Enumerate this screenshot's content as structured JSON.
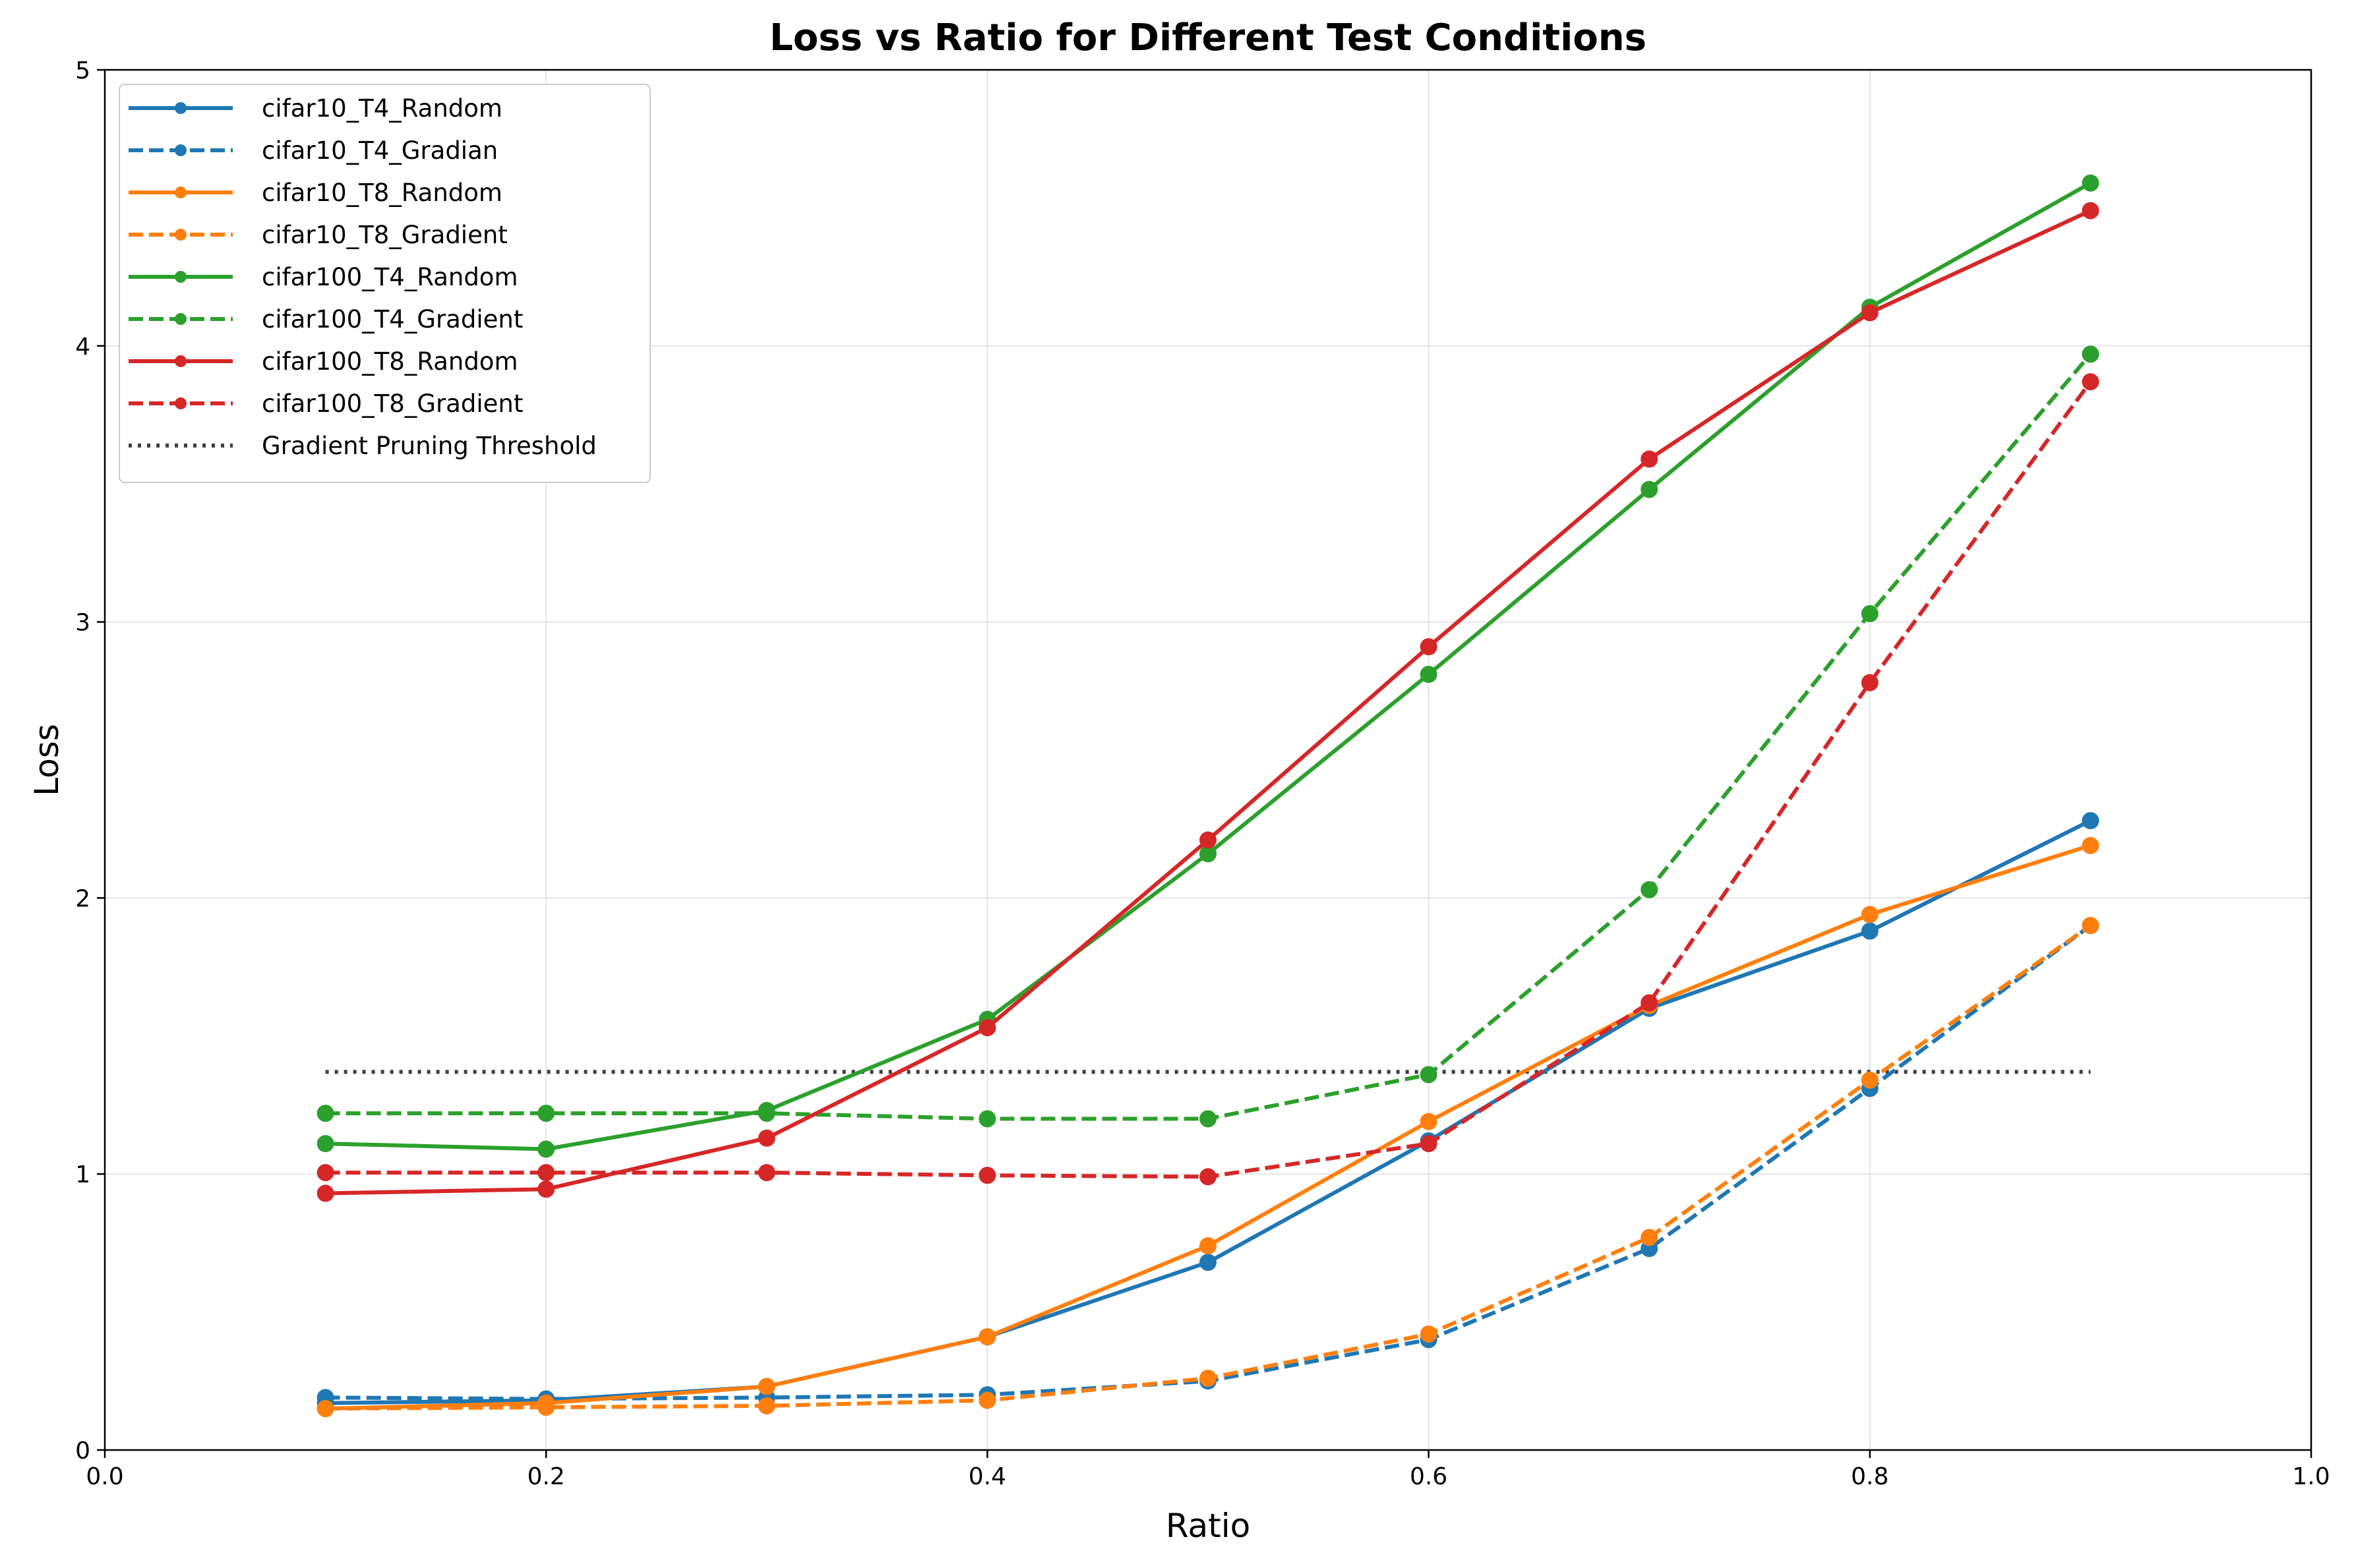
{
  "chart_data": {
    "type": "line",
    "title": "Loss vs Ratio for Different Test Conditions",
    "xlabel": "Ratio",
    "ylabel": "Loss",
    "xlim": [
      0.0,
      1.0
    ],
    "ylim": [
      0,
      5
    ],
    "xticks": [
      "0.0",
      "0.2",
      "0.4",
      "0.6",
      "0.8",
      "1.0"
    ],
    "yticks": [
      "0",
      "1",
      "2",
      "3",
      "4",
      "5"
    ],
    "grid": true,
    "legend_position": "top-left",
    "x": [
      0.1,
      0.2,
      0.3,
      0.4,
      0.5,
      0.6,
      0.7,
      0.8,
      0.9
    ],
    "series": [
      {
        "name": "cifar10_T4_Random",
        "color": "#1f77b4",
        "style": "solid",
        "values": [
          0.17,
          0.18,
          0.23,
          0.41,
          0.68,
          1.12,
          1.6,
          1.88,
          2.28
        ]
      },
      {
        "name": "cifar10_T4_Gradian",
        "color": "#1f77b4",
        "style": "dashed",
        "values": [
          0.19,
          0.185,
          0.19,
          0.2,
          0.25,
          0.4,
          0.73,
          1.31,
          1.9
        ]
      },
      {
        "name": "cifar10_T8_Random",
        "color": "#ff7f0e",
        "style": "solid",
        "values": [
          0.15,
          0.17,
          0.23,
          0.41,
          0.74,
          1.19,
          1.61,
          1.94,
          2.19
        ]
      },
      {
        "name": "cifar10_T8_Gradient",
        "color": "#ff7f0e",
        "style": "dashed",
        "values": [
          0.15,
          0.155,
          0.16,
          0.18,
          0.26,
          0.42,
          0.77,
          1.34,
          1.9
        ]
      },
      {
        "name": "cifar100_T4_Random",
        "color": "#2ca02c",
        "style": "solid",
        "values": [
          1.11,
          1.09,
          1.23,
          1.56,
          2.16,
          2.81,
          3.48,
          4.14,
          4.59
        ]
      },
      {
        "name": "cifar100_T4_Gradient",
        "color": "#2ca02c",
        "style": "dashed",
        "values": [
          1.22,
          1.22,
          1.22,
          1.2,
          1.2,
          1.36,
          2.03,
          3.03,
          3.97
        ]
      },
      {
        "name": "cifar100_T8_Random",
        "color": "#d62728",
        "style": "solid",
        "values": [
          0.93,
          0.945,
          1.13,
          1.53,
          2.21,
          2.91,
          3.59,
          4.12,
          4.49
        ]
      },
      {
        "name": "cifar100_T8_Gradient",
        "color": "#d62728",
        "style": "dashed",
        "values": [
          1.005,
          1.005,
          1.005,
          0.995,
          0.99,
          1.11,
          1.62,
          2.78,
          3.87
        ]
      }
    ],
    "reference_lines": [
      {
        "name": "Gradient Pruning Threshold",
        "color": "#404040",
        "style": "dotted",
        "y": 1.37,
        "x_range": [
          0.1,
          0.9
        ]
      }
    ]
  }
}
